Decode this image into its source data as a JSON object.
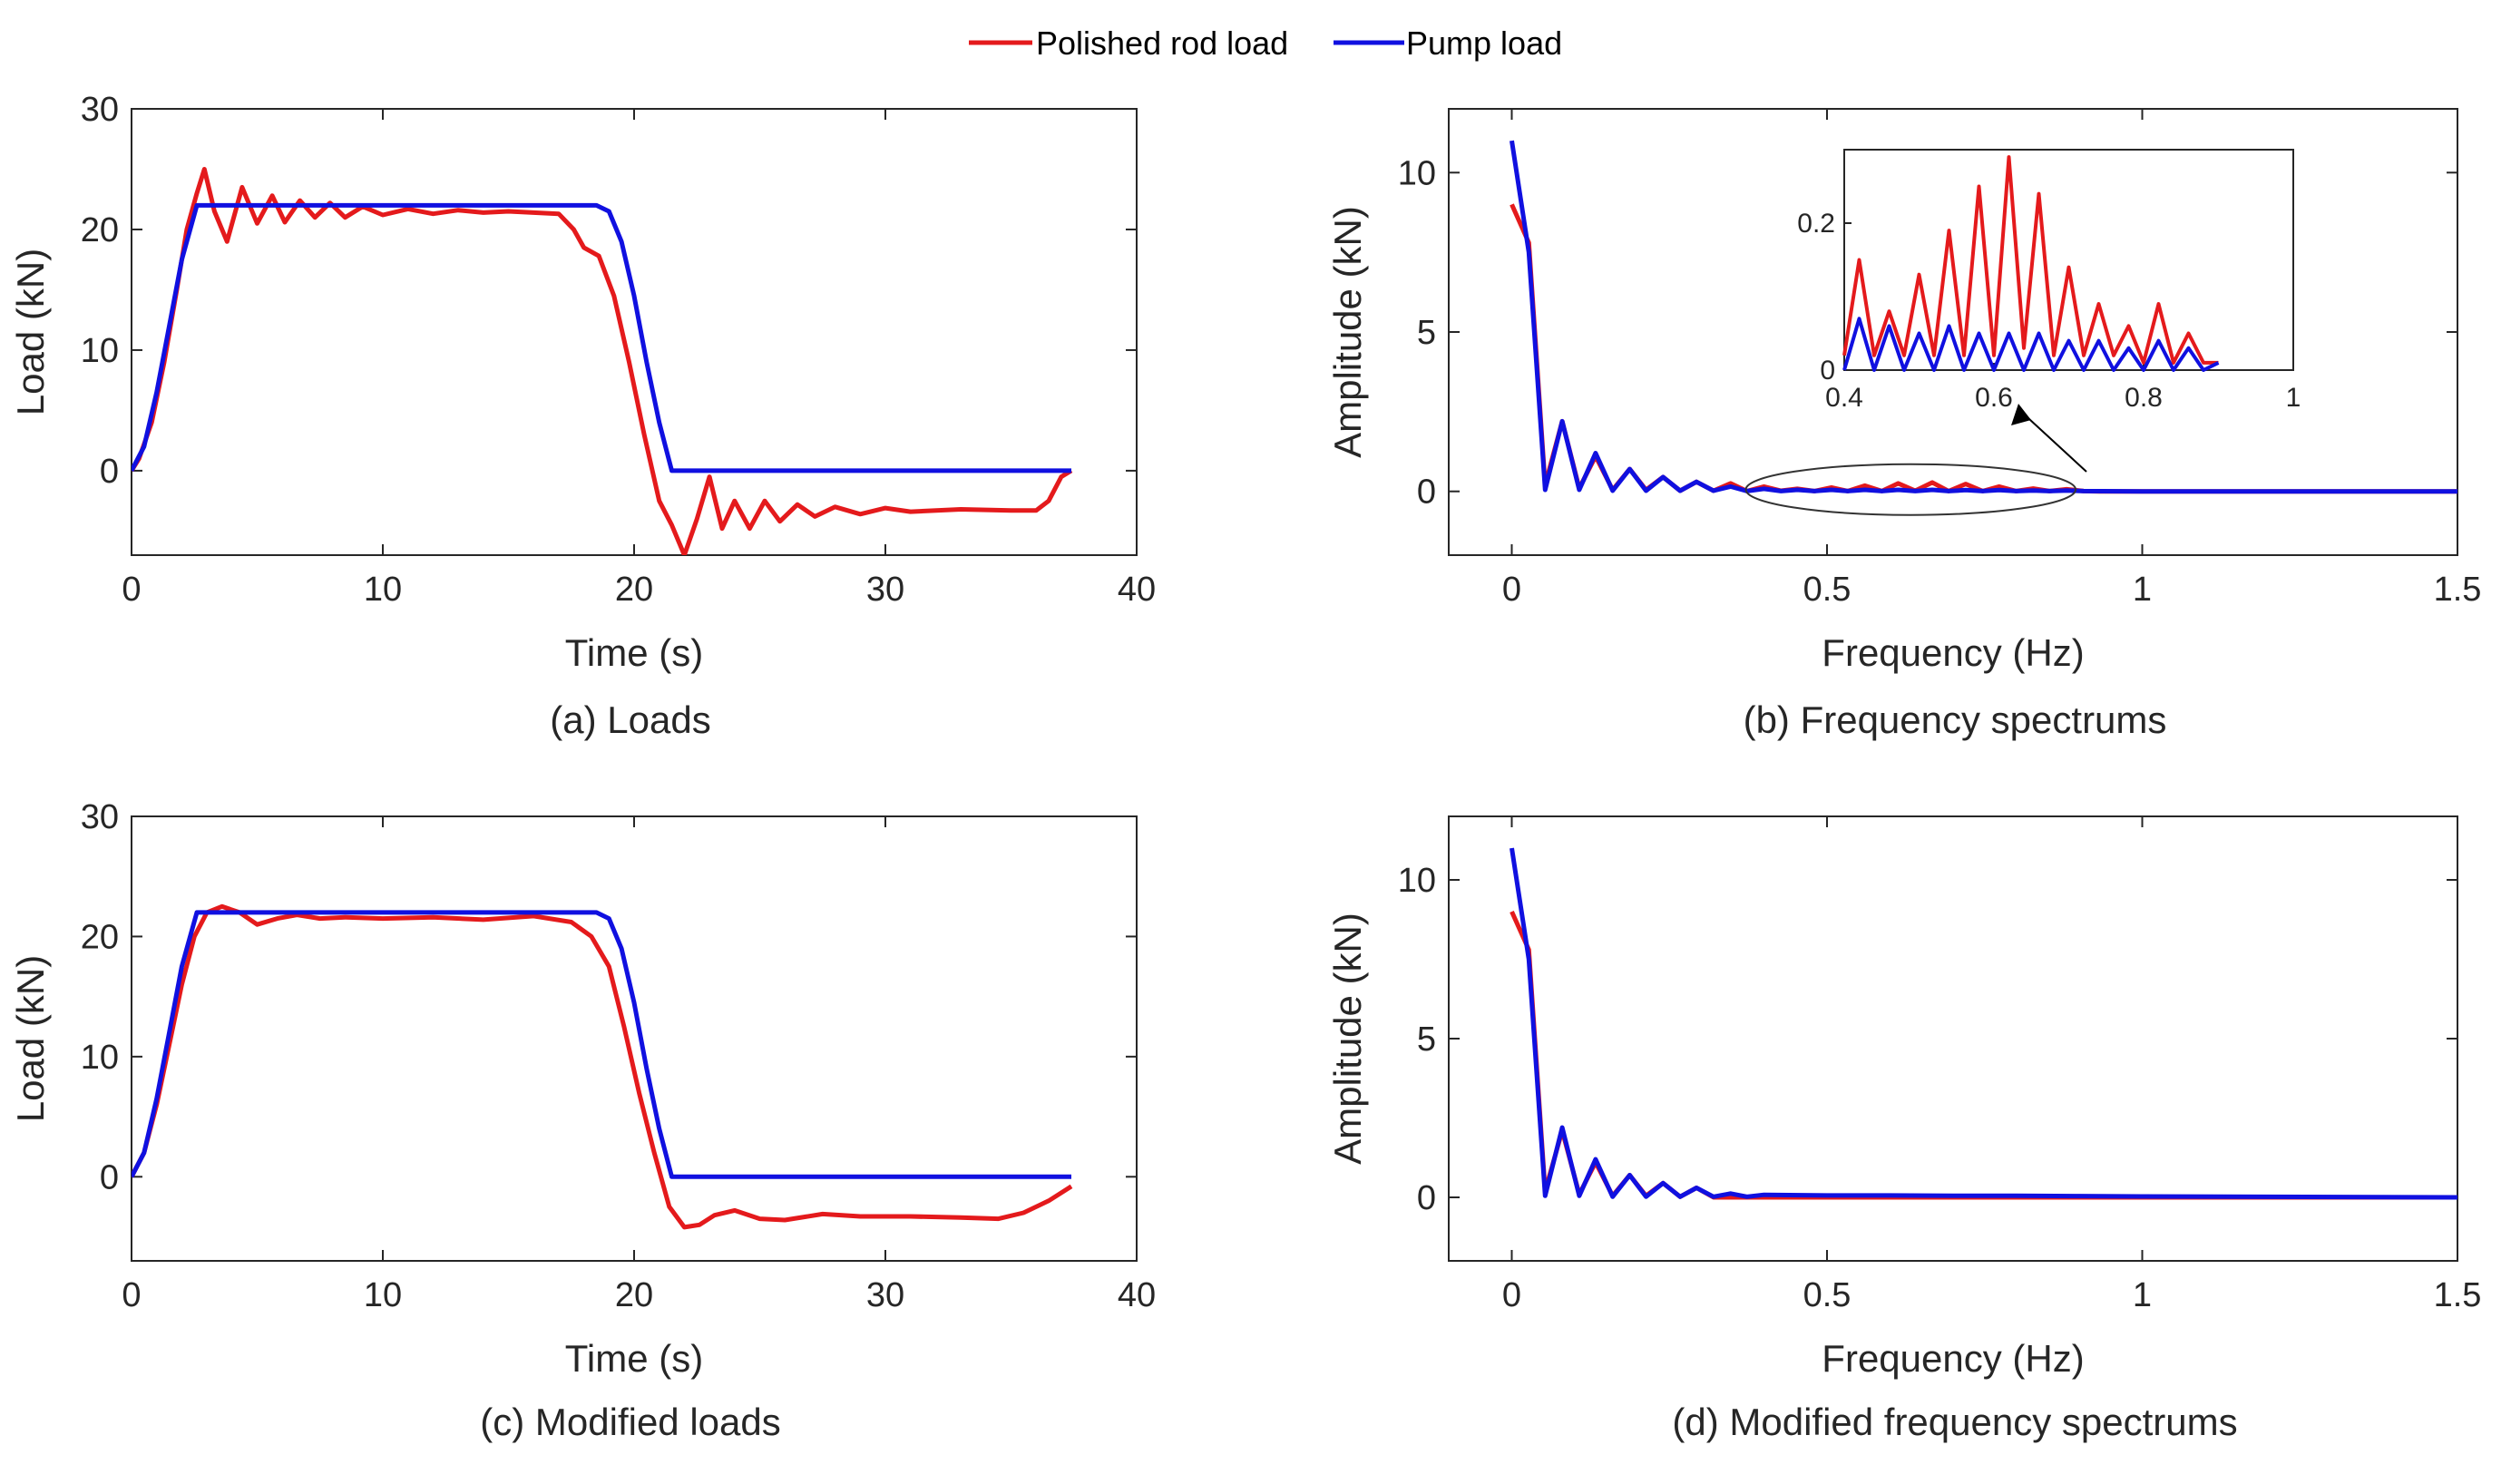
{
  "legend": {
    "entries": [
      {
        "label": "Polished rod load",
        "color": "#e41a1c"
      },
      {
        "label": "Pump load",
        "color": "#1010e0"
      }
    ]
  },
  "chart_data": [
    {
      "id": "a",
      "type": "line",
      "caption": "(a) Loads",
      "xlabel": "Time (s)",
      "ylabel": "Load (kN)",
      "xlim": [
        0,
        40
      ],
      "ylim": [
        -7,
        30
      ],
      "xticks": [
        0,
        10,
        20,
        30,
        40
      ],
      "yticks": [
        0,
        10,
        20,
        30
      ],
      "series": [
        {
          "name": "Polished rod load",
          "color": "#e41a1c",
          "x": [
            0,
            0.3,
            0.8,
            1.3,
            1.8,
            2.2,
            2.6,
            2.9,
            3.3,
            3.8,
            4.4,
            5.0,
            5.6,
            6.1,
            6.7,
            7.3,
            7.9,
            8.5,
            9.2,
            10.0,
            11.0,
            12.0,
            13.0,
            14.0,
            15.0,
            16.0,
            17.0,
            17.6,
            18.0,
            18.6,
            19.2,
            19.8,
            20.4,
            21.0,
            21.5,
            22.0,
            22.5,
            23.0,
            23.5,
            24.0,
            24.6,
            25.2,
            25.8,
            26.5,
            27.2,
            28.0,
            29.0,
            30.0,
            31.0,
            33.0,
            35.0,
            36.0,
            36.5,
            37.0,
            37.4
          ],
          "y": [
            0,
            1,
            4,
            9,
            15,
            20,
            23,
            25,
            21.5,
            19,
            23.5,
            20.5,
            22.8,
            20.6,
            22.4,
            21,
            22.2,
            21,
            21.9,
            21.2,
            21.7,
            21.3,
            21.6,
            21.4,
            21.5,
            21.4,
            21.3,
            20,
            18.5,
            17.8,
            14.5,
            9,
            3,
            -2.5,
            -4.5,
            -7,
            -4,
            -0.5,
            -4.8,
            -2.5,
            -4.8,
            -2.5,
            -4.2,
            -2.8,
            -3.8,
            -3,
            -3.6,
            -3.1,
            -3.4,
            -3.2,
            -3.3,
            -3.3,
            -2.5,
            -0.5,
            0
          ]
        },
        {
          "name": "Pump load",
          "color": "#1010e0",
          "x": [
            0,
            0.5,
            1.0,
            1.5,
            2.0,
            2.6,
            18.5,
            19.0,
            19.5,
            20.0,
            20.5,
            21.0,
            21.5,
            37.4
          ],
          "y": [
            0,
            2,
            6.5,
            12,
            17.5,
            22,
            22,
            21.5,
            19,
            14.5,
            9,
            4,
            0,
            0
          ]
        }
      ]
    },
    {
      "id": "b",
      "type": "line",
      "caption": "(b) Frequency spectrums",
      "xlabel": "Frequency (Hz)",
      "ylabel": "Amplitude (kN)",
      "xlim": [
        -0.1,
        1.5
      ],
      "ylim": [
        -2,
        12
      ],
      "xticks": [
        0,
        0.5,
        1,
        1.5
      ],
      "ytick_values": [
        0,
        5,
        10
      ],
      "series": [
        {
          "name": "Polished rod load",
          "color": "#e41a1c",
          "x": [
            0,
            0.027,
            0.053,
            0.08,
            0.107,
            0.133,
            0.16,
            0.187,
            0.213,
            0.24,
            0.267,
            0.293,
            0.32,
            0.347,
            0.373,
            0.4,
            0.427,
            0.453,
            0.48,
            0.507,
            0.533,
            0.56,
            0.587,
            0.613,
            0.64,
            0.667,
            0.693,
            0.72,
            0.747,
            0.773,
            0.8,
            0.827,
            0.853,
            0.88,
            0.907,
            0.933,
            1.0,
            1.5
          ],
          "y": [
            9,
            7.8,
            0.2,
            2.2,
            0.1,
            1.1,
            0.05,
            0.7,
            0.05,
            0.45,
            0.02,
            0.3,
            0.02,
            0.25,
            0.01,
            0.15,
            0.02,
            0.08,
            0.01,
            0.12,
            0.01,
            0.18,
            0.01,
            0.25,
            0.02,
            0.28,
            0.01,
            0.23,
            0.01,
            0.15,
            0.01,
            0.09,
            0.01,
            0.07,
            0.01,
            0,
            0,
            0
          ]
        },
        {
          "name": "Pump load",
          "color": "#1010e0",
          "x": [
            0,
            0.027,
            0.053,
            0.08,
            0.107,
            0.133,
            0.16,
            0.187,
            0.213,
            0.24,
            0.267,
            0.293,
            0.32,
            0.347,
            0.373,
            0.4,
            0.427,
            0.453,
            0.48,
            0.507,
            0.533,
            0.56,
            0.587,
            0.613,
            0.64,
            0.667,
            0.693,
            0.72,
            0.747,
            0.773,
            0.8,
            0.827,
            0.853,
            0.88,
            0.907,
            1.0,
            1.5
          ],
          "y": [
            11,
            7.5,
            0.05,
            2.2,
            0.05,
            1.2,
            0.02,
            0.7,
            0.02,
            0.45,
            0.02,
            0.3,
            0.02,
            0.15,
            0.01,
            0.08,
            0.01,
            0.05,
            0.01,
            0.05,
            0.01,
            0.05,
            0.01,
            0.05,
            0.01,
            0.05,
            0.01,
            0.04,
            0.01,
            0.04,
            0.01,
            0.03,
            0.01,
            0.03,
            0.01,
            0,
            0
          ]
        }
      ],
      "inset": {
        "xlim": [
          0.4,
          1
        ],
        "ylim": [
          0,
          0.3
        ],
        "xticks": [
          0.4,
          0.6,
          0.8,
          1
        ],
        "yticks": [
          0,
          0.2
        ],
        "series": [
          {
            "name": "Polished rod load",
            "color": "#e41a1c",
            "x": [
              0.4,
              0.42,
              0.44,
              0.46,
              0.48,
              0.5,
              0.52,
              0.54,
              0.56,
              0.58,
              0.6,
              0.62,
              0.64,
              0.66,
              0.68,
              0.7,
              0.72,
              0.74,
              0.76,
              0.78,
              0.8,
              0.82,
              0.84,
              0.86,
              0.88,
              0.9
            ],
            "y": [
              0.02,
              0.15,
              0.02,
              0.08,
              0.02,
              0.13,
              0.02,
              0.19,
              0.02,
              0.25,
              0.02,
              0.29,
              0.03,
              0.24,
              0.02,
              0.14,
              0.02,
              0.09,
              0.02,
              0.06,
              0.01,
              0.09,
              0.01,
              0.05,
              0.01,
              0.01
            ]
          },
          {
            "name": "Pump load",
            "color": "#1010e0",
            "x": [
              0.4,
              0.42,
              0.44,
              0.46,
              0.48,
              0.5,
              0.52,
              0.54,
              0.56,
              0.58,
              0.6,
              0.62,
              0.64,
              0.66,
              0.68,
              0.7,
              0.72,
              0.74,
              0.76,
              0.78,
              0.8,
              0.82,
              0.84,
              0.86,
              0.88,
              0.9
            ],
            "y": [
              0.0,
              0.07,
              0.0,
              0.06,
              0.0,
              0.05,
              0.0,
              0.06,
              0.0,
              0.05,
              0.0,
              0.05,
              0.0,
              0.05,
              0.0,
              0.04,
              0.0,
              0.04,
              0.0,
              0.03,
              0.0,
              0.04,
              0.0,
              0.03,
              0.0,
              0.01
            ]
          }
        ]
      }
    },
    {
      "id": "c",
      "type": "line",
      "caption": "(c) Modified loads",
      "xlabel": "Time (s)",
      "ylabel": "Load (kN)",
      "xlim": [
        0,
        40
      ],
      "ylim": [
        -7,
        30
      ],
      "xticks": [
        0,
        10,
        20,
        30,
        40
      ],
      "yticks": [
        0,
        10,
        20,
        30
      ],
      "series": [
        {
          "name": "Polished rod load",
          "color": "#e41a1c",
          "x": [
            0,
            0.5,
            1.0,
            1.5,
            2.0,
            2.5,
            3.0,
            3.6,
            4.3,
            5.0,
            5.8,
            6.6,
            7.5,
            8.5,
            10,
            12,
            14,
            16,
            17.5,
            18.3,
            19.0,
            19.6,
            20.2,
            20.8,
            21.4,
            22.0,
            22.6,
            23.2,
            24.0,
            25.0,
            26.0,
            27.5,
            29.0,
            31.0,
            33.0,
            34.5,
            35.5,
            36.5,
            37.4
          ],
          "y": [
            0,
            2,
            6,
            11,
            16,
            20,
            22,
            22.5,
            22,
            21,
            21.5,
            21.8,
            21.5,
            21.6,
            21.5,
            21.6,
            21.4,
            21.7,
            21.2,
            20,
            17.5,
            12.5,
            7,
            2,
            -2.5,
            -4.2,
            -4,
            -3.2,
            -2.8,
            -3.5,
            -3.6,
            -3.1,
            -3.3,
            -3.3,
            -3.4,
            -3.5,
            -3,
            -2,
            -0.8
          ]
        },
        {
          "name": "Pump load",
          "color": "#1010e0",
          "x": [
            0,
            0.5,
            1.0,
            1.5,
            2.0,
            2.6,
            18.5,
            19.0,
            19.5,
            20.0,
            20.5,
            21.0,
            21.5,
            37.4
          ],
          "y": [
            0,
            2,
            6.5,
            12,
            17.5,
            22,
            22,
            21.5,
            19,
            14.5,
            9,
            4,
            0,
            0
          ]
        }
      ]
    },
    {
      "id": "d",
      "type": "line",
      "caption": "(d) Modified frequency spectrums",
      "xlabel": "Frequency (Hz)",
      "ylabel": "Amplitude (kN)",
      "xlim": [
        -0.1,
        1.5
      ],
      "ylim": [
        -2,
        12
      ],
      "xticks": [
        0,
        0.5,
        1,
        1.5
      ],
      "ytick_values": [
        0,
        5,
        10
      ],
      "series": [
        {
          "name": "Polished rod load",
          "color": "#e41a1c",
          "x": [
            0,
            0.027,
            0.053,
            0.08,
            0.107,
            0.133,
            0.16,
            0.187,
            0.213,
            0.24,
            0.267,
            0.293,
            0.32,
            0.4,
            1.5
          ],
          "y": [
            9,
            7.8,
            0.2,
            2.1,
            0.1,
            1.1,
            0.05,
            0.7,
            0.05,
            0.45,
            0.02,
            0.3,
            0.0,
            0.0,
            0.0
          ]
        },
        {
          "name": "Pump load",
          "color": "#1010e0",
          "x": [
            0,
            0.027,
            0.053,
            0.08,
            0.107,
            0.133,
            0.16,
            0.187,
            0.213,
            0.24,
            0.267,
            0.293,
            0.32,
            0.347,
            0.373,
            0.4,
            0.5,
            0.6,
            0.7,
            0.8,
            0.9,
            1.0,
            1.5
          ],
          "y": [
            11,
            7.5,
            0.05,
            2.2,
            0.05,
            1.2,
            0.02,
            0.7,
            0.02,
            0.45,
            0.02,
            0.3,
            0.02,
            0.12,
            0.02,
            0.08,
            0.06,
            0.06,
            0.05,
            0.05,
            0.04,
            0.03,
            0
          ]
        }
      ]
    }
  ]
}
